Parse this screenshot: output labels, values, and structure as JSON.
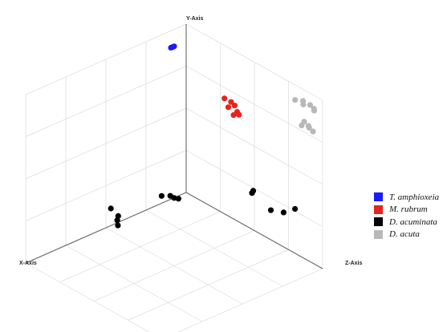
{
  "chart_data": {
    "type": "scatter",
    "projection": "3d",
    "grid": true,
    "legend_position": "right",
    "axes": {
      "x": {
        "label": "X-Axis"
      },
      "y": {
        "label": "Y-Axis"
      },
      "z": {
        "label": "Z-Axis"
      }
    },
    "series": [
      {
        "name": "T. amphioxeia",
        "color": "#1a1aff",
        "points": [
          [
            0.16,
            0.98,
            0.1
          ],
          [
            0.17,
            0.98,
            0.1
          ],
          [
            0.18,
            0.98,
            0.1
          ]
        ]
      },
      {
        "name": "M. rubrum",
        "color": "#e8231f",
        "points": [
          [
            0.11,
            0.79,
            0.41
          ],
          [
            0.12,
            0.8,
            0.47
          ],
          [
            0.12,
            0.76,
            0.45
          ],
          [
            0.14,
            0.81,
            0.52
          ],
          [
            0.13,
            0.74,
            0.5
          ],
          [
            0.15,
            0.79,
            0.55
          ],
          [
            0.13,
            0.76,
            0.54
          ]
        ]
      },
      {
        "name": "D. acuminata",
        "color": "#000000",
        "points": [
          [
            0.05,
            0.28,
            0.55
          ],
          [
            0.1,
            0.31,
            0.6
          ],
          [
            0.11,
            0.28,
            0.75
          ],
          [
            0.09,
            0.29,
            0.82
          ],
          [
            0.07,
            0.33,
            0.88
          ],
          [
            0.15,
            0.08,
            0.12
          ],
          [
            0.16,
            0.08,
            0.1
          ],
          [
            0.15,
            0.07,
            0.06
          ],
          [
            0.17,
            0.06,
            0.02
          ],
          [
            0.5,
            0.11,
            0.09
          ],
          [
            0.52,
            0.15,
            0.06
          ],
          [
            0.54,
            0.12,
            0.13
          ],
          [
            0.57,
            0.12,
            0.17
          ]
        ]
      },
      {
        "name": "D. acuta",
        "color": "#b8b8b8",
        "points": [
          [
            0.02,
            0.82,
            0.92
          ],
          [
            0.03,
            0.84,
            0.9
          ],
          [
            0.02,
            0.8,
            0.87
          ],
          [
            0.05,
            0.84,
            0.96
          ],
          [
            0.06,
            0.84,
            1.0
          ],
          [
            0.01,
            0.92,
            0.87
          ],
          [
            0.01,
            0.92,
            0.81
          ],
          [
            0.02,
            0.95,
            0.88
          ],
          [
            0.01,
            0.94,
            0.92
          ],
          [
            0.01,
            0.92,
            0.95
          ],
          [
            0.02,
            0.94,
            0.96
          ]
        ]
      }
    ]
  }
}
